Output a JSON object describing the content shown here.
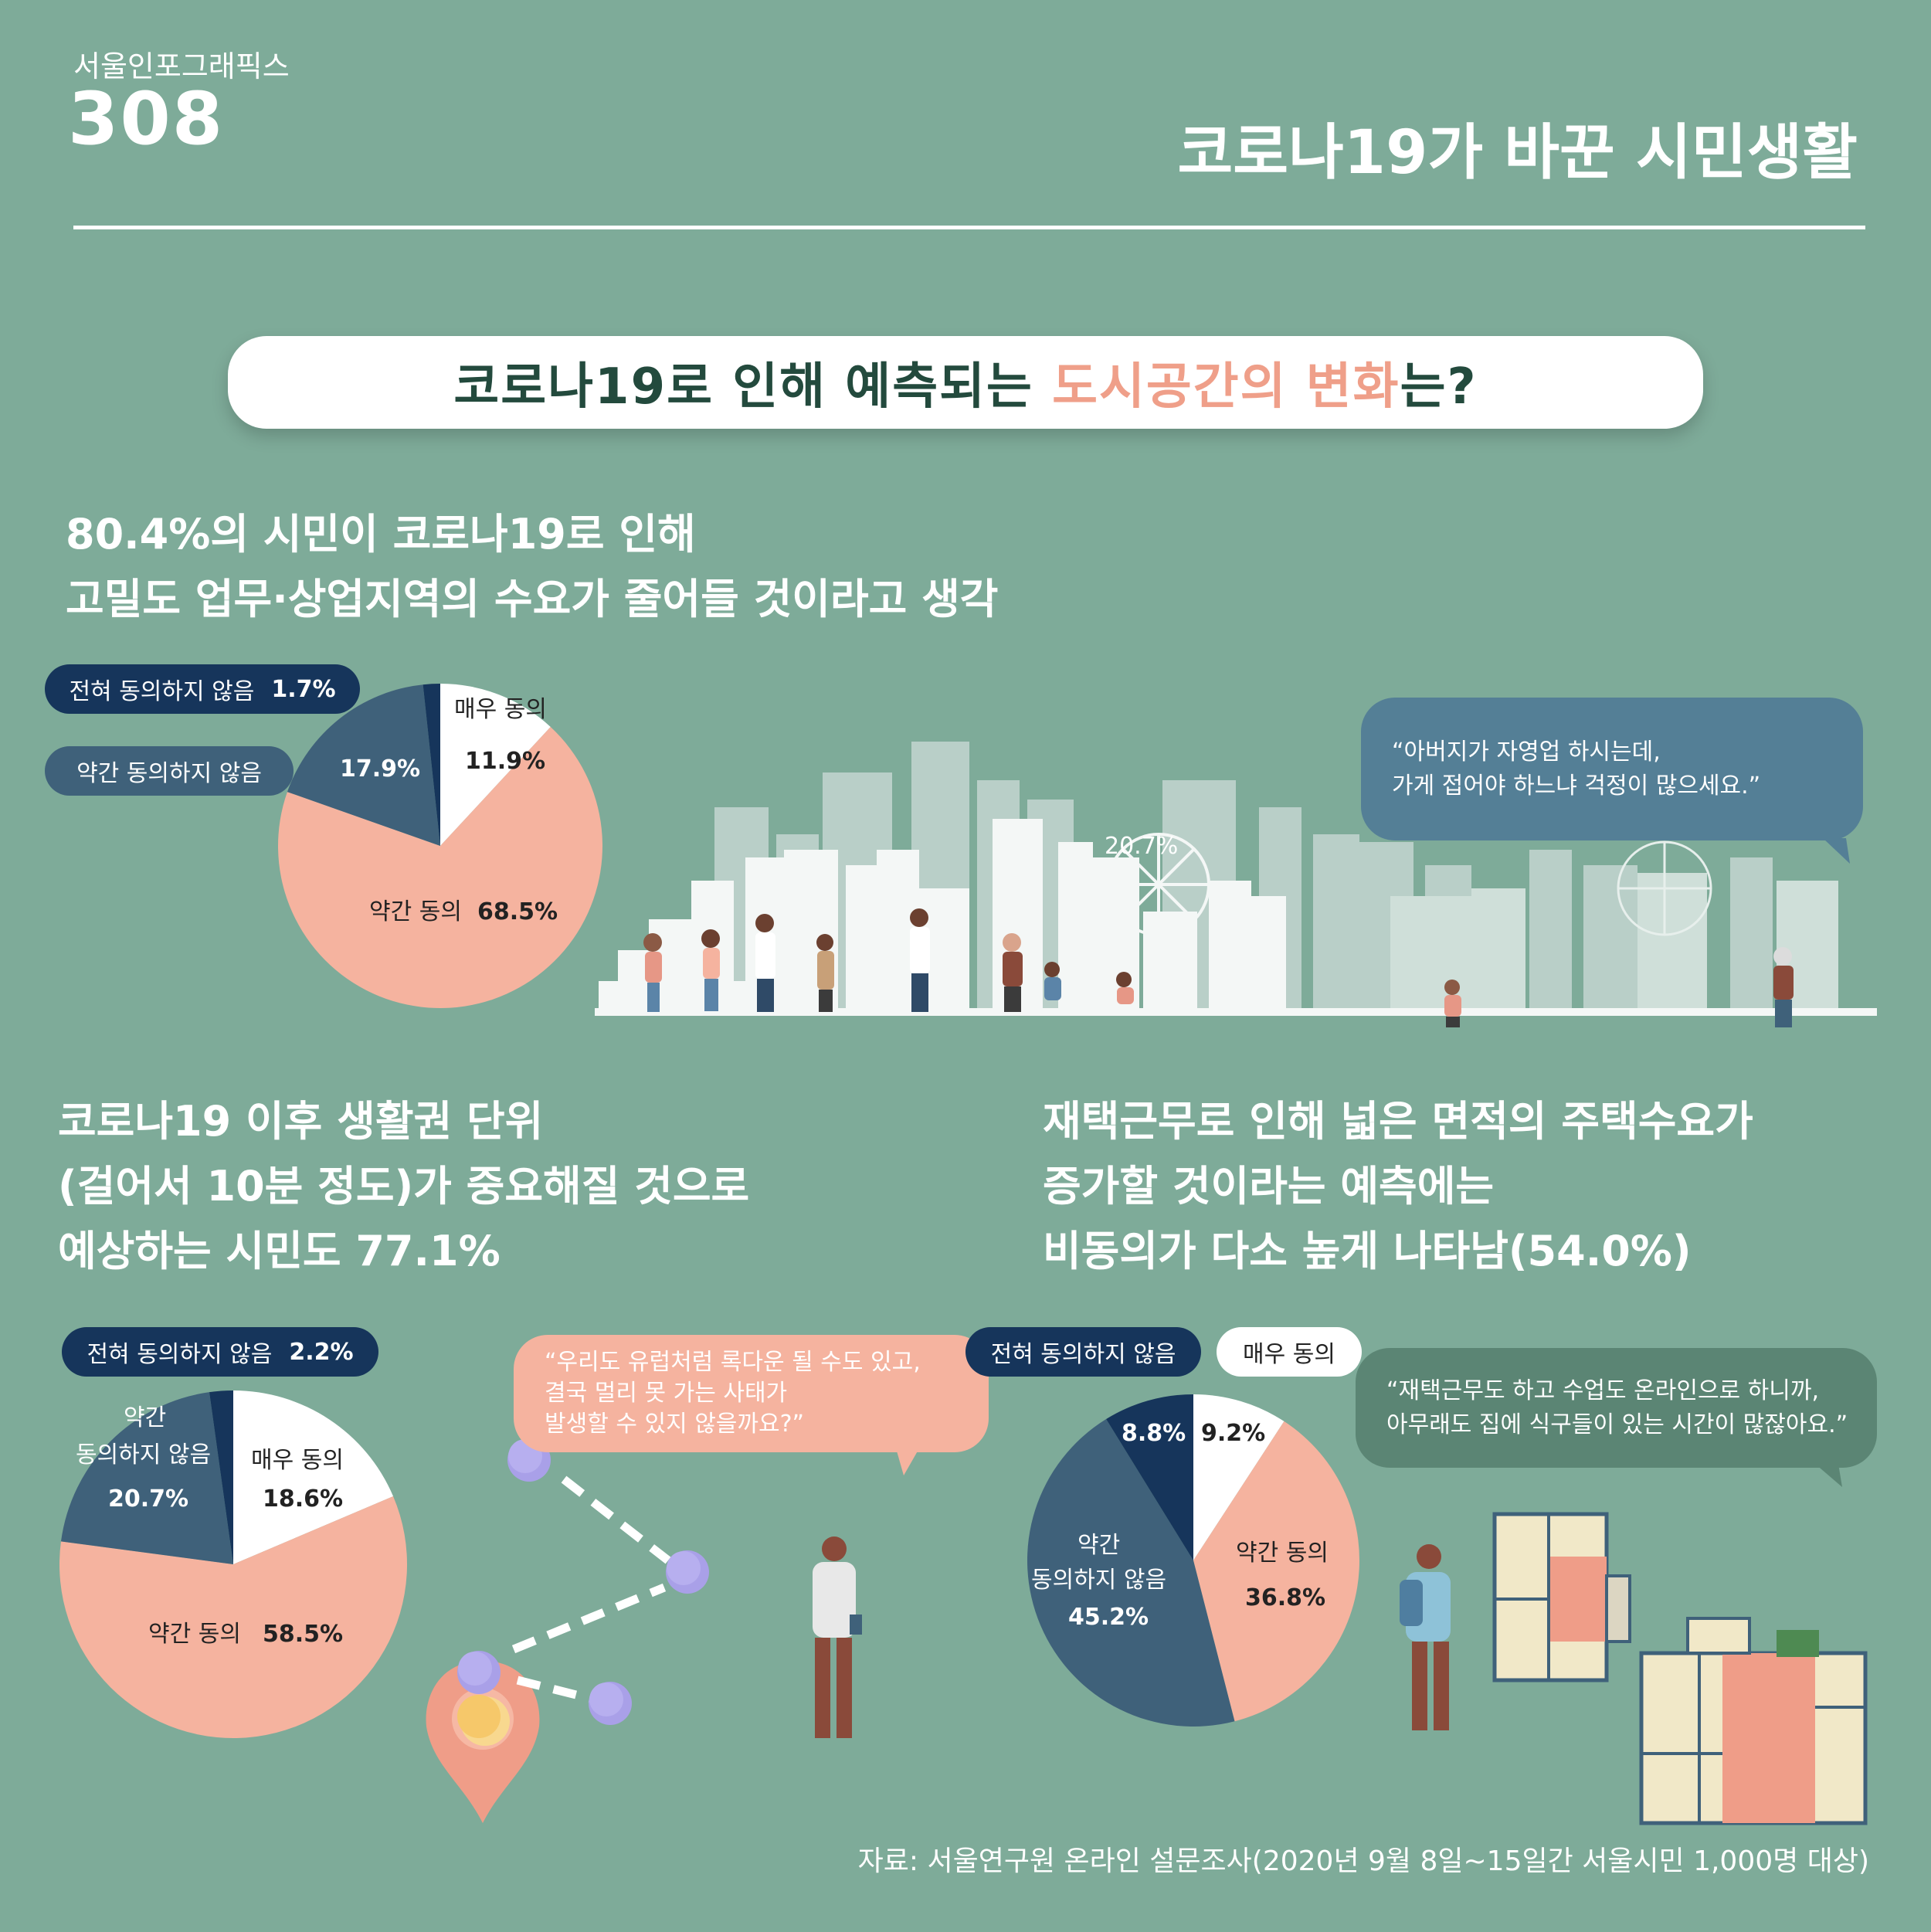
{
  "header": {
    "series_label": "서울인포그래픽스",
    "issue_number": "308",
    "title": "코로나19가 바꾼 시민생활"
  },
  "question": {
    "prefix": "코로나19로 인해 예측되는 ",
    "highlight": "도시공간의 변화",
    "suffix": "는?"
  },
  "section1": {
    "heading_lines": [
      "80.4%의 시민이 코로나19로 인해",
      "고밀도 업무·상업지역의 수요가 줄어들 것이라고 생각"
    ],
    "tags": {
      "strongly_disagree": "전혀 동의하지 않음",
      "strongly_disagree_value": "1.7%",
      "somewhat_disagree": "약간 동의하지 않음"
    },
    "labels": {
      "strongly_agree": "매우 동의",
      "strongly_agree_value": "11.9%",
      "somewhat_disagree_value": "17.9%",
      "somewhat_agree": "약간 동의",
      "somewhat_agree_value": "68.5%"
    },
    "quote_lines": [
      "“아버지가 자영업 하시는데,",
      "가게 접어야 하느냐 걱정이 많으세요.”"
    ],
    "illustration_text": "20.7%"
  },
  "section2": {
    "heading_lines": [
      "코로나19 이후 생활권 단위",
      "(걸어서 10분 정도)가 중요해질 것으로",
      "예상하는 시민도 77.1%"
    ],
    "tags": {
      "strongly_disagree": "전혀 동의하지 않음",
      "strongly_disagree_value": "2.2%"
    },
    "labels": {
      "somewhat_disagree_1": "약간",
      "somewhat_disagree_2": "동의하지 않음",
      "somewhat_disagree_value": "20.7%",
      "strongly_agree": "매우 동의",
      "strongly_agree_value": "18.6%",
      "somewhat_agree": "약간 동의",
      "somewhat_agree_value": "58.5%"
    },
    "quote_lines": [
      "“우리도 유럽처럼 록다운 될 수도 있고,",
      "결국 멀리 못 가는 사태가",
      "발생할 수 있지 않을까요?”"
    ]
  },
  "section3": {
    "heading_lines": [
      "재택근무로 인해 넓은 면적의 주택수요가",
      "증가할 것이라는 예측에는",
      "비동의가 다소 높게 나타남(54.0%)"
    ],
    "tags": {
      "strongly_disagree": "전혀 동의하지 않음",
      "strongly_agree": "매우 동의"
    },
    "labels": {
      "strongly_disagree_value": "8.8%",
      "strongly_agree_value": "9.2%",
      "somewhat_agree": "약간 동의",
      "somewhat_agree_value": "36.8%",
      "somewhat_disagree_1": "약간",
      "somewhat_disagree_2": "동의하지 않음",
      "somewhat_disagree_value": "45.2%"
    },
    "quote_lines": [
      "“재택근무도 하고 수업도 온라인으로 하니까,",
      "아무래도 집에 식구들이 있는 시간이 많잖아요.”"
    ]
  },
  "source": "자료: 서울연구원 온라인 설문조사(2020년 9월 8일~15일간 서울시민 1,000명 대상)",
  "colors": {
    "background": "#7eab99",
    "strongly_agree": "#ffffff",
    "somewhat_agree": "#f5b39f",
    "somewhat_disagree": "#3f617a",
    "strongly_disagree": "#16355b",
    "highlight": "#ef9f89"
  },
  "chart_data": [
    {
      "type": "pie",
      "title": "80.4%의 시민이 코로나19로 인해 고밀도 업무·상업지역의 수요가 줄어들 것이라고 생각",
      "categories": [
        "매우 동의",
        "약간 동의",
        "약간 동의하지 않음",
        "전혀 동의하지 않음"
      ],
      "values": [
        11.9,
        68.5,
        17.9,
        1.7
      ]
    },
    {
      "type": "pie",
      "title": "코로나19 이후 생활권 단위(걸어서 10분 정도)가 중요해질 것으로 예상하는 시민도 77.1%",
      "categories": [
        "매우 동의",
        "약간 동의",
        "약간 동의하지 않음",
        "전혀 동의하지 않음"
      ],
      "values": [
        18.6,
        58.5,
        20.7,
        2.2
      ]
    },
    {
      "type": "pie",
      "title": "재택근무로 인해 넓은 면적의 주택수요가 증가할 것이라는 예측에는 비동의가 다소 높게 나타남(54.0%)",
      "categories": [
        "매우 동의",
        "약간 동의",
        "약간 동의하지 않음",
        "전혀 동의하지 않음"
      ],
      "values": [
        9.2,
        36.8,
        45.2,
        8.8
      ]
    }
  ]
}
